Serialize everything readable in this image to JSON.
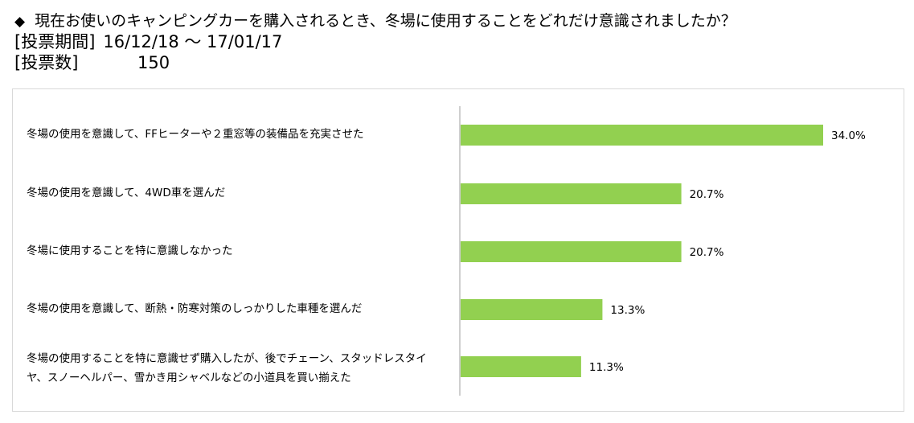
{
  "header": {
    "bullet": "◆",
    "question": "現在お使いのキャンピングカーを購入されるとき、冬場に使用することをどれだけ意識されましたか？",
    "period_label": "[投票期間]",
    "period_value": "16/12/18 〜 17/01/17",
    "count_label": "[投票数]",
    "count_value": "150"
  },
  "chart_data": {
    "type": "bar",
    "orientation": "horizontal",
    "categories": [
      "冬場の使用を意識して、FFヒーターや２重窓等の装備品を充実させた",
      "冬場の使用を意識して、4WD車を選んだ",
      "冬場に使用することを特に意識しなかった",
      "冬場の使用を意識して、断熱・防寒対策のしっかりした車種を選んだ",
      "冬場の使用することを特に意識せず購入したが、後でチェーン、スタッドレスタイヤ、スノーヘルパー、雪かき用シャベルなどの小道具を買い揃えた"
    ],
    "values": [
      34.0,
      20.7,
      20.7,
      13.3,
      11.3
    ],
    "value_labels": [
      "34.0%",
      "20.7%",
      "20.7%",
      "13.3%",
      "11.3%"
    ],
    "unit": "%",
    "xlim": [
      0,
      40
    ],
    "grid": false,
    "legend": "none",
    "bar_color": "#92d050",
    "axis_color": "#bfbfbf"
  }
}
